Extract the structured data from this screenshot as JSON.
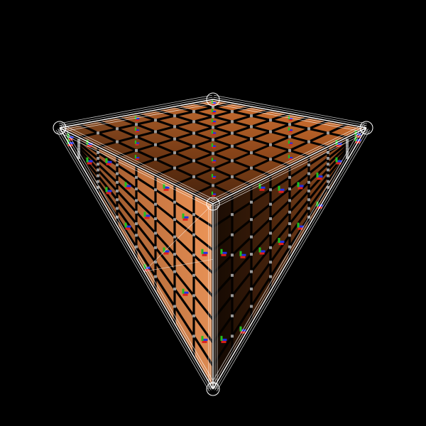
{
  "viewport": {
    "background": "#000000"
  },
  "object": {
    "shape": "rounded-cube",
    "view": "corner-on",
    "grid_divisions": 8,
    "texture_colors": {
      "tile_light": "#e0864a",
      "tile_mid": "#a55522",
      "tile_dark": "#2a1305",
      "grout": "#050200",
      "grid_dot": "#9a9a9a",
      "axis_x": "#e0201a",
      "axis_y": "#22c020",
      "axis_z": "#2030e8"
    },
    "wireframe": {
      "visible": true,
      "color": "#ffffff"
    },
    "gizmos": {
      "visible": true,
      "style": "rgb-axis-markers"
    }
  }
}
